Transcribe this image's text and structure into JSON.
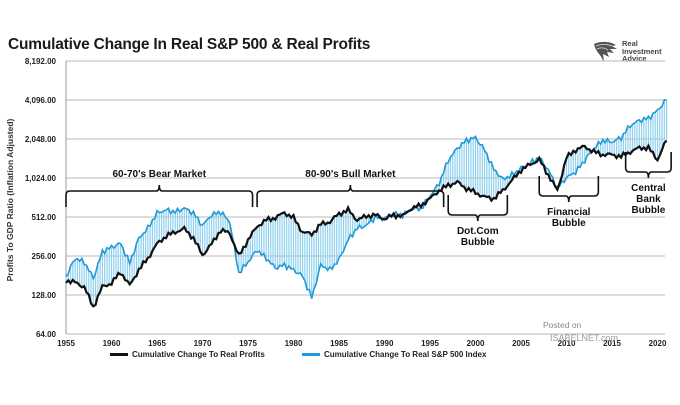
{
  "header": {
    "title": "Cumulative Change In Real S&P 500 & Real Profits",
    "logo_lines": [
      "Real",
      "Investment",
      "Advice"
    ]
  },
  "watermark": {
    "line1": "Posted on",
    "line2": "ISABELNET.com"
  },
  "colors": {
    "profits": "#111111",
    "sp500": "#1f9ad6",
    "fill": "#8fd0ef",
    "grid": "#b8b8b8"
  },
  "chart_data": {
    "type": "line",
    "title": "Cumulative Change In Real S&P 500 & Real Profits",
    "xlabel": "",
    "ylabel": "Profits To GDP Ratio (Inflation Adjusted)",
    "yscale": "log2",
    "ylim": [
      64,
      8192
    ],
    "xlim": [
      1955,
      2021.5
    ],
    "grid": true,
    "legend_position": "bottom",
    "yticks": [
      64,
      128,
      256,
      512,
      1024,
      2048,
      4096,
      8192
    ],
    "ytick_labels": [
      "64.00",
      "128.00",
      "256.00",
      "512.00",
      "1,024.00",
      "2,048.00",
      "4,096.00",
      "8,192.00"
    ],
    "xticks": [
      1955,
      1960,
      1965,
      1970,
      1975,
      1980,
      1985,
      1990,
      1995,
      2000,
      2005,
      2010,
      2015,
      2020
    ],
    "x": [
      1955,
      1956,
      1957,
      1958,
      1959,
      1960,
      1961,
      1962,
      1963,
      1964,
      1965,
      1966,
      1967,
      1968,
      1969,
      1970,
      1971,
      1972,
      1973,
      1974,
      1975,
      1976,
      1977,
      1978,
      1979,
      1980,
      1981,
      1982,
      1983,
      1984,
      1985,
      1986,
      1987,
      1988,
      1989,
      1990,
      1991,
      1992,
      1993,
      1994,
      1995,
      1996,
      1997,
      1998,
      1999,
      2000,
      2001,
      2002,
      2003,
      2004,
      2005,
      2006,
      2007,
      2008,
      2009,
      2010,
      2011,
      2012,
      2013,
      2014,
      2015,
      2016,
      2017,
      2018,
      2019,
      2020,
      2021
    ],
    "series": [
      {
        "name": "Cumulative Change To Real Profits",
        "color": "#111111",
        "values": [
          166,
          160,
          148,
          103,
          148,
          158,
          192,
          152,
          200,
          246,
          317,
          365,
          392,
          415,
          352,
          260,
          317,
          405,
          384,
          256,
          340,
          433,
          485,
          505,
          553,
          505,
          392,
          377,
          450,
          470,
          542,
          580,
          485,
          520,
          530,
          494,
          530,
          520,
          600,
          630,
          710,
          820,
          900,
          950,
          850,
          790,
          730,
          710,
          820,
          980,
          1180,
          1300,
          1420,
          1080,
          820,
          1470,
          1690,
          1790,
          1630,
          1550,
          1550,
          1500,
          1630,
          1750,
          1750,
          1420,
          2010
        ]
      },
      {
        "name": "Cumulative Change To Real S&P 500 Index",
        "color": "#1f9ad6",
        "values": [
          176,
          246,
          230,
          173,
          276,
          300,
          320,
          226,
          350,
          420,
          550,
          580,
          560,
          600,
          550,
          440,
          532,
          560,
          468,
          189,
          230,
          285,
          246,
          207,
          218,
          200,
          179,
          122,
          218,
          200,
          240,
          340,
          420,
          440,
          510,
          500,
          540,
          530,
          600,
          590,
          740,
          930,
          1400,
          1740,
          2000,
          2100,
          1690,
          1200,
          1000,
          1080,
          1220,
          1340,
          1470,
          1180,
          860,
          1030,
          1140,
          1400,
          1740,
          2000,
          1940,
          2100,
          2600,
          2850,
          2960,
          3400,
          4150
        ]
      }
    ],
    "annotations": [
      {
        "id": "bear",
        "text": [
          "60-70's Bear Market"
        ],
        "x_range": [
          1955,
          1975.5
        ],
        "position": "above"
      },
      {
        "id": "bull",
        "text": [
          "80-90's Bull Market"
        ],
        "x_range": [
          1976,
          1996.5
        ],
        "position": "above"
      },
      {
        "id": "dotcom",
        "text": [
          "Dot.Com",
          "Bubble"
        ],
        "x_range": [
          1997,
          2003.5
        ],
        "position": "below"
      },
      {
        "id": "financial",
        "text": [
          "Financial",
          "Bubble"
        ],
        "x_range": [
          2007,
          2013.5
        ],
        "position": "below"
      },
      {
        "id": "central",
        "text": [
          "Central",
          "Bank",
          "Bubble"
        ],
        "x_range": [
          2016.5,
          2021.5
        ],
        "position": "below"
      }
    ]
  }
}
